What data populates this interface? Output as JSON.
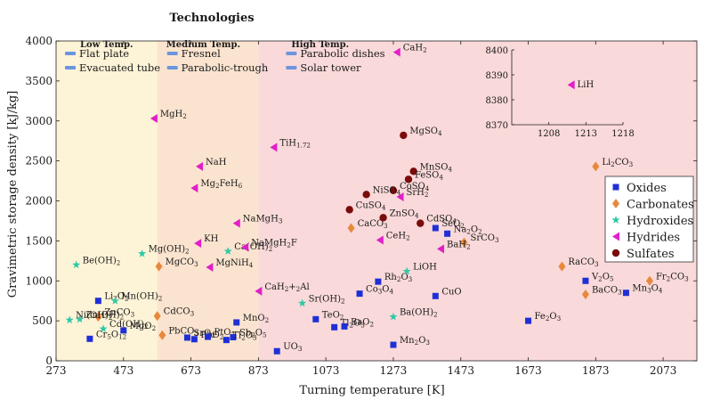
{
  "chart_data": {
    "type": "scatter",
    "title": "Technologies",
    "xlabel": "Turning temperature [K]",
    "ylabel": "Gravimetric storage density [kJ/kg]",
    "xlim": [
      273,
      2173
    ],
    "ylim": [
      0,
      4000
    ],
    "xticks": [
      273,
      473,
      673,
      873,
      1073,
      1273,
      1473,
      1673,
      1873,
      2073
    ],
    "yticks": [
      0,
      500,
      1000,
      1500,
      2000,
      2500,
      3000,
      3500,
      4000
    ],
    "regions": [
      {
        "label": "Low Temp.",
        "x0": 273,
        "x1": 573,
        "color": "#fdf3d7",
        "techs": [
          "Flat plate",
          "Evacuated tube"
        ]
      },
      {
        "label": "Medium Temp.",
        "x0": 573,
        "x1": 873,
        "color": "#fbe4cf",
        "techs": [
          "Fresnel",
          "Parabolic-trough"
        ]
      },
      {
        "label": "High Temp.",
        "x0": 873,
        "x1": 2173,
        "color": "#f9d9d9",
        "techs": [
          "Parabolic dishes",
          "Solar tower"
        ]
      }
    ],
    "tech_color": "#6b95e0",
    "legend": [
      {
        "name": "Oxides",
        "color": "#1f2fd6",
        "marker": "square"
      },
      {
        "name": "Carbonates",
        "color": "#e8883a",
        "marker": "diamond"
      },
      {
        "name": "Hydroxides",
        "color": "#2ec9a6",
        "marker": "star"
      },
      {
        "name": "Hydrides",
        "color": "#e21fc9",
        "marker": "triangle"
      },
      {
        "name": "Sulfates",
        "color": "#7a0c0c",
        "marker": "circle"
      }
    ],
    "series": [
      {
        "name": "Oxides",
        "points": [
          {
            "label": "Li2O2",
            "x": 398,
            "y": 750
          },
          {
            "label": "MgO2",
            "x": 473,
            "y": 380
          },
          {
            "label": "Cr5O12",
            "x": 373,
            "y": 275
          },
          {
            "label": "SrO2",
            "x": 662,
            "y": 290
          },
          {
            "label": "PbO2",
            "x": 683,
            "y": 270
          },
          {
            "label": "PtO2",
            "x": 723,
            "y": 300
          },
          {
            "label": "MnO2",
            "x": 808,
            "y": 480
          },
          {
            "label": "Sb2O5",
            "x": 798,
            "y": 295
          },
          {
            "label": "Tl2O3",
            "x": 778,
            "y": 260
          },
          {
            "label": "UO3",
            "x": 928,
            "y": 120
          },
          {
            "label": "TeO2",
            "x": 1043,
            "y": 520
          },
          {
            "label": "Tl2O3",
            "x": 1098,
            "y": 420
          },
          {
            "label": "BaO2",
            "x": 1128,
            "y": 430
          },
          {
            "label": "Co3O4",
            "x": 1173,
            "y": 840
          },
          {
            "label": "Rh2O3",
            "x": 1228,
            "y": 990
          },
          {
            "label": "Mn2O3",
            "x": 1273,
            "y": 200
          },
          {
            "label": "CuO",
            "x": 1398,
            "y": 810
          },
          {
            "label": "SeO2",
            "x": 1398,
            "y": 1660
          },
          {
            "label": "Na2O2",
            "x": 1433,
            "y": 1590
          },
          {
            "label": "Fe2O3",
            "x": 1673,
            "y": 500
          },
          {
            "label": "V2O5",
            "x": 1843,
            "y": 1000
          },
          {
            "label": "Mn3O4",
            "x": 1963,
            "y": 850
          }
        ]
      },
      {
        "name": "Carbonates",
        "points": [
          {
            "label": "ZnCO3",
            "x": 398,
            "y": 550
          },
          {
            "label": "CdCO3",
            "x": 573,
            "y": 560
          },
          {
            "label": "PbCO3",
            "x": 588,
            "y": 320
          },
          {
            "label": "MgCO3",
            "x": 578,
            "y": 1180
          },
          {
            "label": "CaCO3",
            "x": 1148,
            "y": 1660
          },
          {
            "label": "SrCO3",
            "x": 1483,
            "y": 1480
          },
          {
            "label": "RaCO3",
            "x": 1773,
            "y": 1180
          },
          {
            "label": "BaCO3",
            "x": 1843,
            "y": 830
          },
          {
            "label": "Li2CO3",
            "x": 1873,
            "y": 2430
          },
          {
            "label": "Fr2CO3",
            "x": 2033,
            "y": 1000
          }
        ]
      },
      {
        "name": "Hydroxides",
        "points": [
          {
            "label": "Be(OH)2",
            "x": 333,
            "y": 1200
          },
          {
            "label": "Mn(OH)2",
            "x": 448,
            "y": 750
          },
          {
            "label": "Cd(OH)2",
            "x": 413,
            "y": 400
          },
          {
            "label": "Ni(OH)2",
            "x": 313,
            "y": 510
          },
          {
            "label": "Zn(OH)2",
            "x": 343,
            "y": 520
          },
          {
            "label": "Mg(OH)2",
            "x": 528,
            "y": 1340
          },
          {
            "label": "Ca(OH)2",
            "x": 783,
            "y": 1370
          },
          {
            "label": "Sr(OH)2",
            "x": 1003,
            "y": 720
          },
          {
            "label": "Ba(OH)2",
            "x": 1273,
            "y": 550
          },
          {
            "label": "LiOH",
            "x": 1313,
            "y": 1120
          }
        ]
      },
      {
        "name": "Hydrides",
        "points": [
          {
            "label": "MgH2",
            "x": 563,
            "y": 3030
          },
          {
            "label": "NaH",
            "x": 698,
            "y": 2430
          },
          {
            "label": "Mg2FeH6",
            "x": 683,
            "y": 2160
          },
          {
            "label": "NaMgH3",
            "x": 808,
            "y": 1720
          },
          {
            "label": "KH",
            "x": 693,
            "y": 1470
          },
          {
            "label": "NaMgH2F",
            "x": 833,
            "y": 1420
          },
          {
            "label": "MgNiH4",
            "x": 728,
            "y": 1170
          },
          {
            "label": "CaH2+2Al",
            "x": 873,
            "y": 870
          },
          {
            "label": "TiH1.72",
            "x": 918,
            "y": 2670
          },
          {
            "label": "CaH2",
            "x": 1283,
            "y": 3860
          },
          {
            "label": "SrH2",
            "x": 1293,
            "y": 2050
          },
          {
            "label": "CeH2",
            "x": 1233,
            "y": 1510
          },
          {
            "label": "BaH2",
            "x": 1413,
            "y": 1400
          }
        ]
      },
      {
        "name": "Sulfates",
        "points": [
          {
            "label": "MgSO4",
            "x": 1303,
            "y": 2820
          },
          {
            "label": "MnSO4",
            "x": 1333,
            "y": 2370
          },
          {
            "label": "FeSO4",
            "x": 1318,
            "y": 2270
          },
          {
            "label": "CoSO4",
            "x": 1273,
            "y": 2130
          },
          {
            "label": "NiSO4",
            "x": 1193,
            "y": 2080
          },
          {
            "label": "CuSO4",
            "x": 1143,
            "y": 1890
          },
          {
            "label": "ZnSO4",
            "x": 1243,
            "y": 1790
          },
          {
            "label": "CdSO4",
            "x": 1353,
            "y": 1720
          }
        ]
      }
    ],
    "inset": {
      "xlim": [
        1203,
        1218
      ],
      "ylim": [
        8370,
        8400
      ],
      "xticks": [
        1208,
        1213,
        1218
      ],
      "yticks": [
        8370,
        8380,
        8390,
        8400
      ],
      "point": {
        "label": "LiH",
        "x": 1211,
        "y": 8386,
        "series": "Hydrides"
      }
    }
  }
}
